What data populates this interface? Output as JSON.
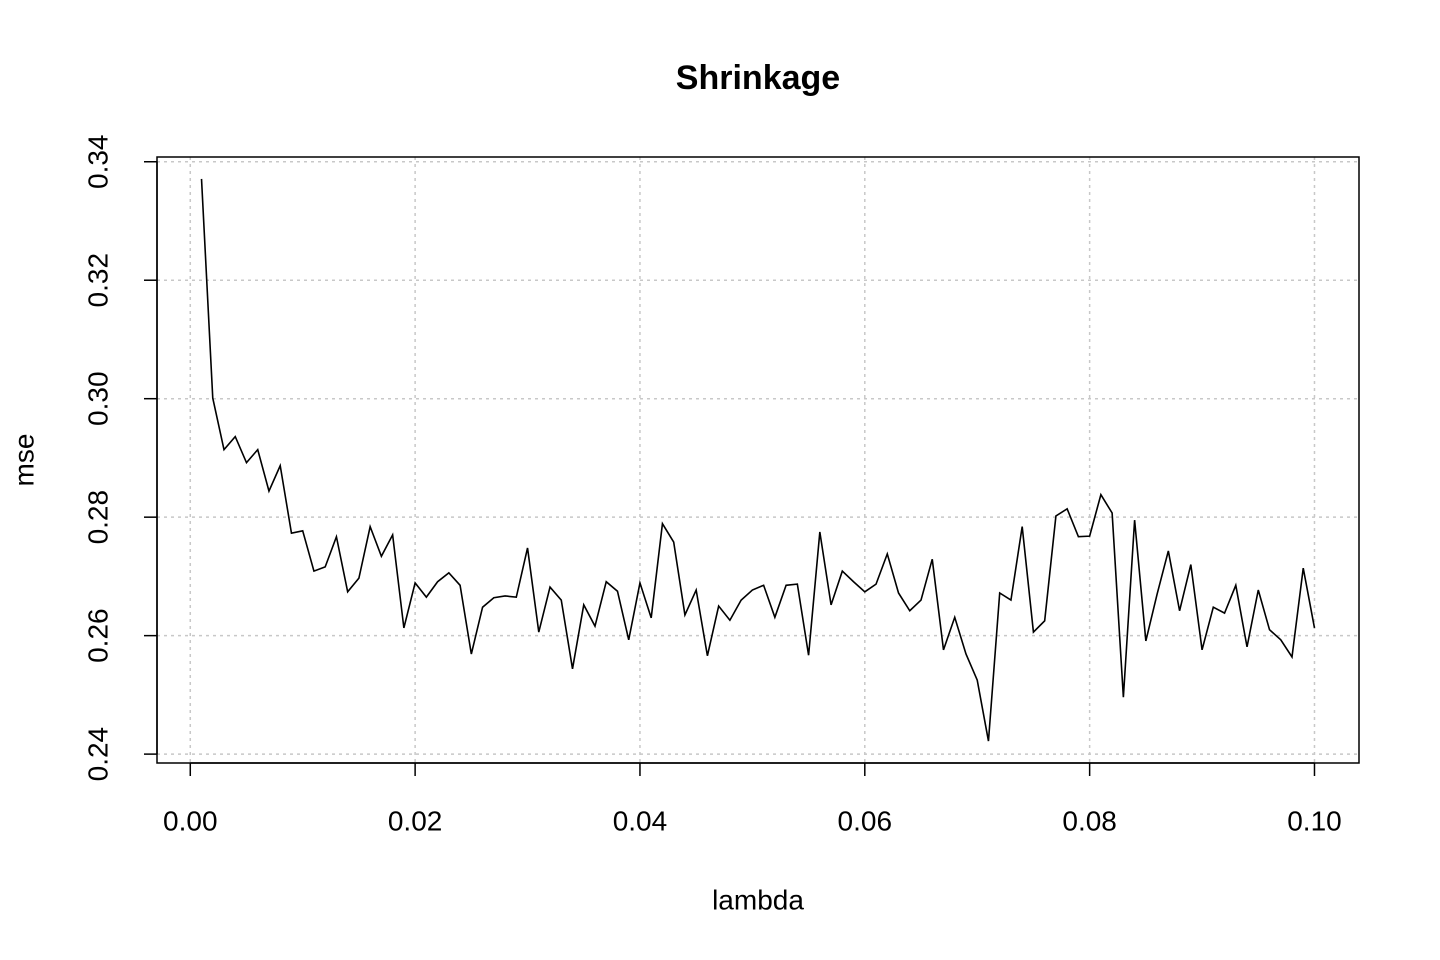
{
  "chart_data": {
    "type": "line",
    "title": "Shrinkage",
    "x_label": "lambda",
    "y_label": "mse",
    "x": [
      0.001,
      0.002,
      0.003,
      0.004,
      0.005,
      0.006,
      0.007,
      0.008,
      0.009,
      0.01,
      0.011,
      0.012,
      0.013,
      0.014,
      0.015,
      0.016,
      0.017,
      0.018,
      0.019,
      0.02,
      0.021,
      0.022,
      0.023,
      0.024,
      0.025,
      0.026,
      0.027,
      0.028,
      0.029,
      0.03,
      0.031,
      0.032,
      0.033,
      0.034,
      0.035,
      0.036,
      0.037,
      0.038,
      0.039,
      0.04,
      0.041,
      0.042,
      0.043,
      0.044,
      0.045,
      0.046,
      0.047,
      0.048,
      0.049,
      0.05,
      0.051,
      0.052,
      0.053,
      0.054,
      0.055,
      0.056,
      0.057,
      0.058,
      0.059,
      0.06,
      0.061,
      0.062,
      0.063,
      0.064,
      0.065,
      0.066,
      0.067,
      0.068,
      0.069,
      0.07,
      0.071,
      0.072,
      0.073,
      0.074,
      0.075,
      0.076,
      0.077,
      0.078,
      0.079,
      0.08,
      0.081,
      0.082,
      0.083,
      0.084,
      0.085,
      0.086,
      0.087,
      0.088,
      0.089,
      0.09,
      0.091,
      0.092,
      0.093,
      0.094,
      0.095,
      0.096,
      0.097,
      0.098,
      0.099,
      0.1
    ],
    "series": [
      {
        "name": "mse",
        "color": "#000000",
        "values": [
          0.3371,
          0.3001,
          0.2914,
          0.2936,
          0.2892,
          0.2914,
          0.2844,
          0.2887,
          0.2773,
          0.2777,
          0.2709,
          0.2716,
          0.2767,
          0.2674,
          0.2697,
          0.2784,
          0.2734,
          0.277,
          0.2613,
          0.2689,
          0.2665,
          0.2691,
          0.2706,
          0.2685,
          0.2569,
          0.2648,
          0.2664,
          0.2667,
          0.2665,
          0.2748,
          0.2606,
          0.2682,
          0.266,
          0.2544,
          0.2652,
          0.2616,
          0.2691,
          0.2675,
          0.2593,
          0.2689,
          0.263,
          0.2789,
          0.2758,
          0.2635,
          0.2677,
          0.2566,
          0.265,
          0.2626,
          0.266,
          0.2677,
          0.2685,
          0.2631,
          0.2685,
          0.2687,
          0.2567,
          0.2775,
          0.2652,
          0.2709,
          0.2691,
          0.2674,
          0.2687,
          0.2738,
          0.2672,
          0.2642,
          0.266,
          0.2729,
          0.2576,
          0.2631,
          0.2569,
          0.2525,
          0.2422,
          0.2672,
          0.266,
          0.2784,
          0.2606,
          0.2625,
          0.2802,
          0.2814,
          0.2767,
          0.2768,
          0.2838,
          0.2807,
          0.2496,
          0.2795,
          0.2591,
          0.267,
          0.2743,
          0.2642,
          0.272,
          0.2576,
          0.2648,
          0.2638,
          0.2685,
          0.2581,
          0.2677,
          0.261,
          0.2593,
          0.2564,
          0.2714,
          0.2613
        ]
      }
    ],
    "xlim": [
      -0.00296,
      0.10396
    ],
    "ylim": [
      0.2385,
      0.3408
    ],
    "xticks": [
      {
        "value": 0,
        "label": "0.00"
      },
      {
        "value": 0.02,
        "label": "0.02"
      },
      {
        "value": 0.04,
        "label": "0.04"
      },
      {
        "value": 0.06,
        "label": "0.06"
      },
      {
        "value": 0.08,
        "label": "0.08"
      },
      {
        "value": 0.1,
        "label": "0.10"
      }
    ],
    "yticks": [
      0.24,
      0.26,
      0.28,
      {
        "value": 0.3,
        "label": "0.30"
      },
      0.32,
      0.34
    ],
    "grid": true
  }
}
